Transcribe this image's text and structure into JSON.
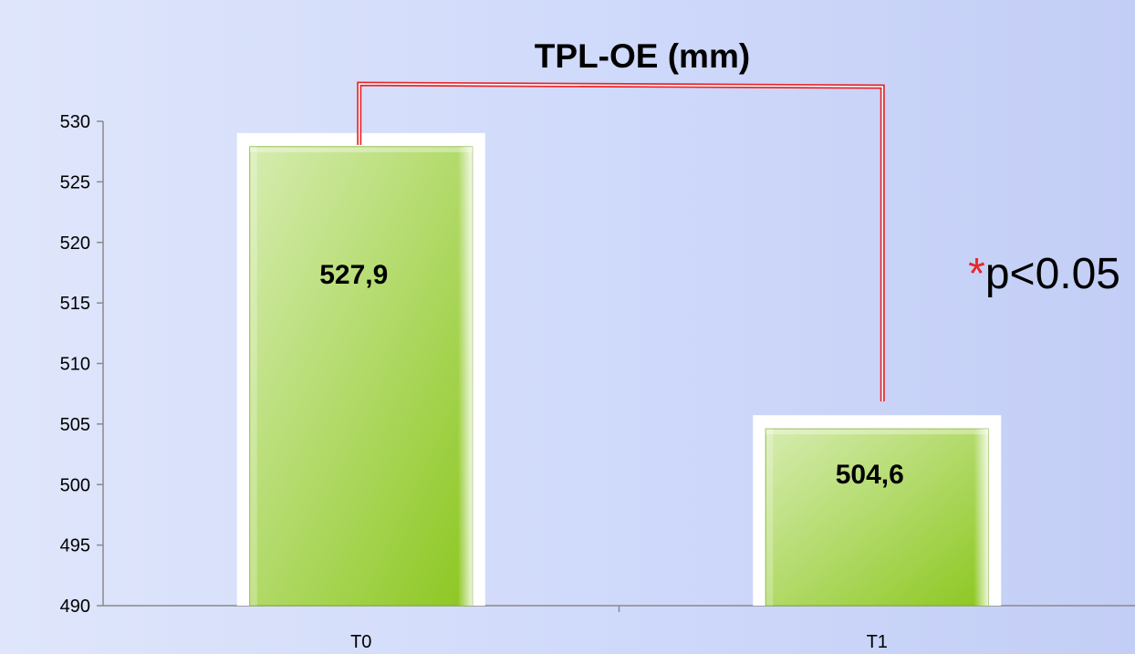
{
  "chart_data": {
    "type": "bar",
    "title": "TPL-OE (mm)",
    "xlabel": "",
    "ylabel": "",
    "categories": [
      "T0",
      "T1"
    ],
    "values": [
      527.9,
      504.6
    ],
    "data_labels": [
      "527,9",
      "504,6"
    ],
    "ylim": [
      490,
      530
    ],
    "yticks": [
      490,
      495,
      500,
      505,
      510,
      515,
      520,
      525,
      530
    ],
    "grid": false,
    "legend": "none",
    "annotation": {
      "star": "*",
      "text": "p<0.05"
    },
    "colors": {
      "bar_light": "#d6ecb0",
      "bar_dark": "#8cc720",
      "bar_frame": "#ffffff",
      "bracket": "#e8262b",
      "star": "#e8262b",
      "axis": "#8a8a8a"
    }
  }
}
